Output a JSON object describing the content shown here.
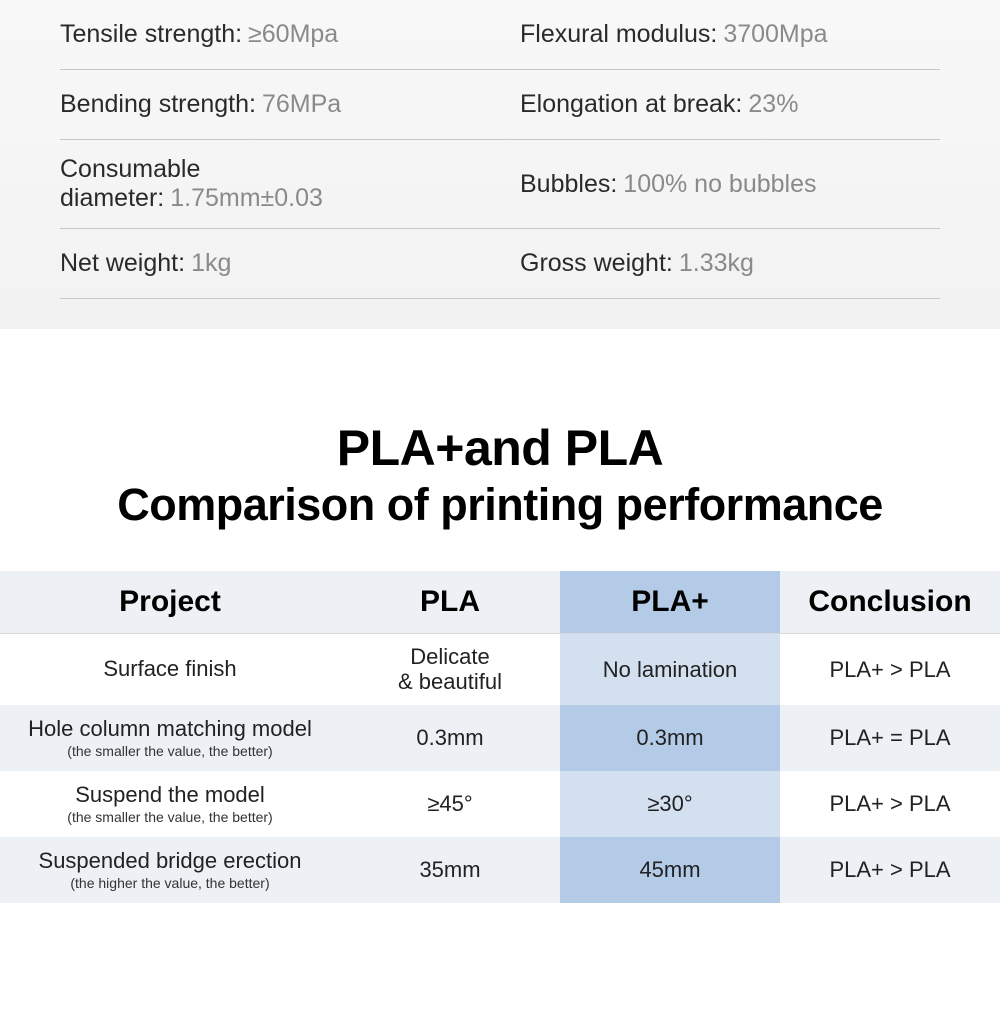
{
  "specs": {
    "rows": [
      {
        "left_label": "Tensile strength:",
        "left_value": "≥60Mpa",
        "right_label": "Flexural modulus:",
        "right_value": "3700Mpa"
      },
      {
        "left_label": "Bending strength:",
        "left_value": "76MPa",
        "right_label": "Elongation at break:",
        "right_value": "23%"
      },
      {
        "left_label": "Consumable",
        "left_label2": "diameter:",
        "left_value": "1.75mm±0.03",
        "right_label": "Bubbles:",
        "right_value": "100% no bubbles"
      },
      {
        "left_label": "Net weight:",
        "left_value": "1kg",
        "right_label": "Gross weight:",
        "right_value": "1.33kg"
      }
    ],
    "label_color": "#2a2a2a",
    "value_color": "#8a8a8a",
    "border_color": "#c8c8c8",
    "bg_gradient_top": "#f8f8f8",
    "bg_gradient_bottom": "#f2f2f2",
    "font_size": 25
  },
  "title": {
    "line1": "PLA+and PLA",
    "line2": "Comparison of printing performance",
    "font_size_main": 50,
    "font_size_sub": 45,
    "color": "#000000"
  },
  "comparison": {
    "headers": {
      "c1": "Project",
      "c2": "PLA",
      "c3": "PLA+",
      "c4": "Conclusion"
    },
    "header_font_size": 30,
    "cell_font_size": 22,
    "note_font_size": 14,
    "colors": {
      "header_bg": "#edf0f4",
      "header_plaplus_bg": "#b4cbe7",
      "row_odd_bg": "#ffffff",
      "row_odd_plaplus_bg": "#d3e0f0",
      "row_even_bg": "#edf0f4",
      "row_even_plaplus_bg": "#b4cbe7",
      "border": "#d8d8d8",
      "text": "#222222"
    },
    "rows": [
      {
        "project": "Surface finish",
        "note": "",
        "pla": "Delicate\n& beautiful",
        "plaplus": "No lamination",
        "conclusion": "PLA+ > PLA"
      },
      {
        "project": "Hole column matching model",
        "note": "(the smaller the value, the better)",
        "pla": "0.3mm",
        "plaplus": "0.3mm",
        "conclusion": "PLA+ = PLA"
      },
      {
        "project": "Suspend the model",
        "note": "(the smaller the value, the better)",
        "pla": "≥45°",
        "plaplus": "≥30°",
        "conclusion": "PLA+ > PLA"
      },
      {
        "project": "Suspended bridge erection",
        "note": "(the higher the value, the better)",
        "pla": "35mm",
        "plaplus": "45mm",
        "conclusion": "PLA+ > PLA"
      }
    ]
  }
}
